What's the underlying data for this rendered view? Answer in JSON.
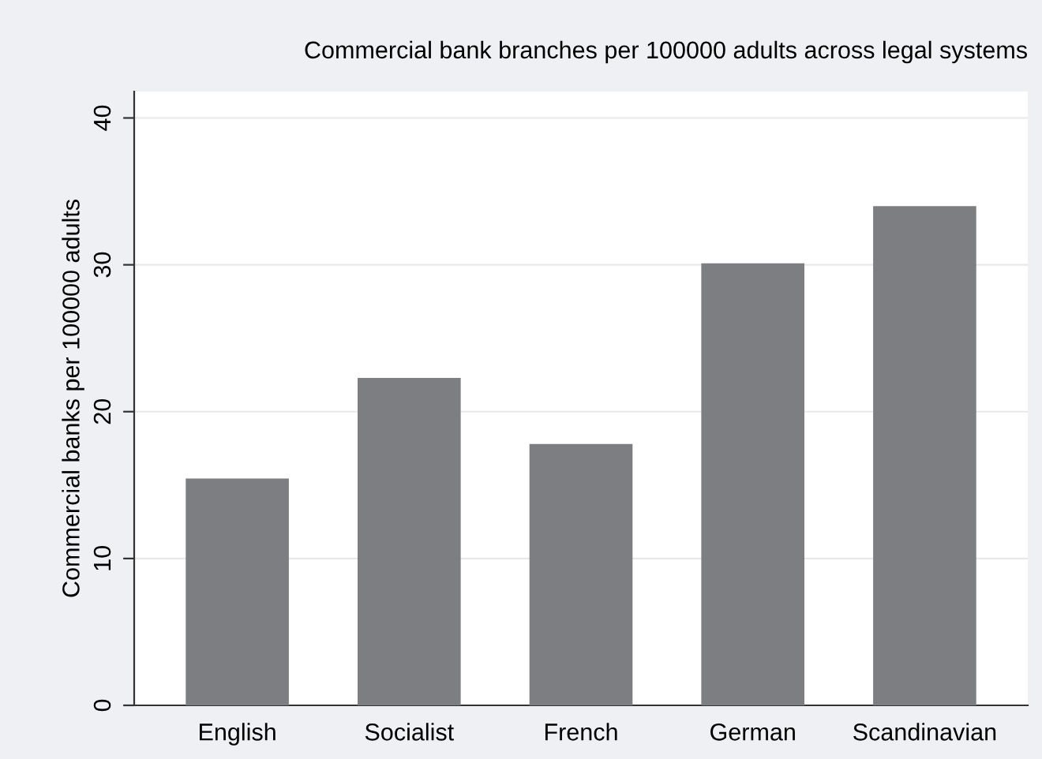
{
  "chart_data": {
    "type": "bar",
    "title": "Commercial bank branches per 100000 adults across legal systems",
    "ylabel": "Commercial banks per 100000 adults",
    "categories": [
      "English",
      "Socialist",
      "French",
      "German",
      "Scandinavian"
    ],
    "values": [
      15.45,
      22.3,
      17.8,
      30.1,
      34.0
    ],
    "color": "#7d7e82",
    "ylim": [
      0,
      41.8
    ],
    "yticks": [
      0,
      10,
      20,
      30,
      40
    ],
    "grid": "y"
  }
}
